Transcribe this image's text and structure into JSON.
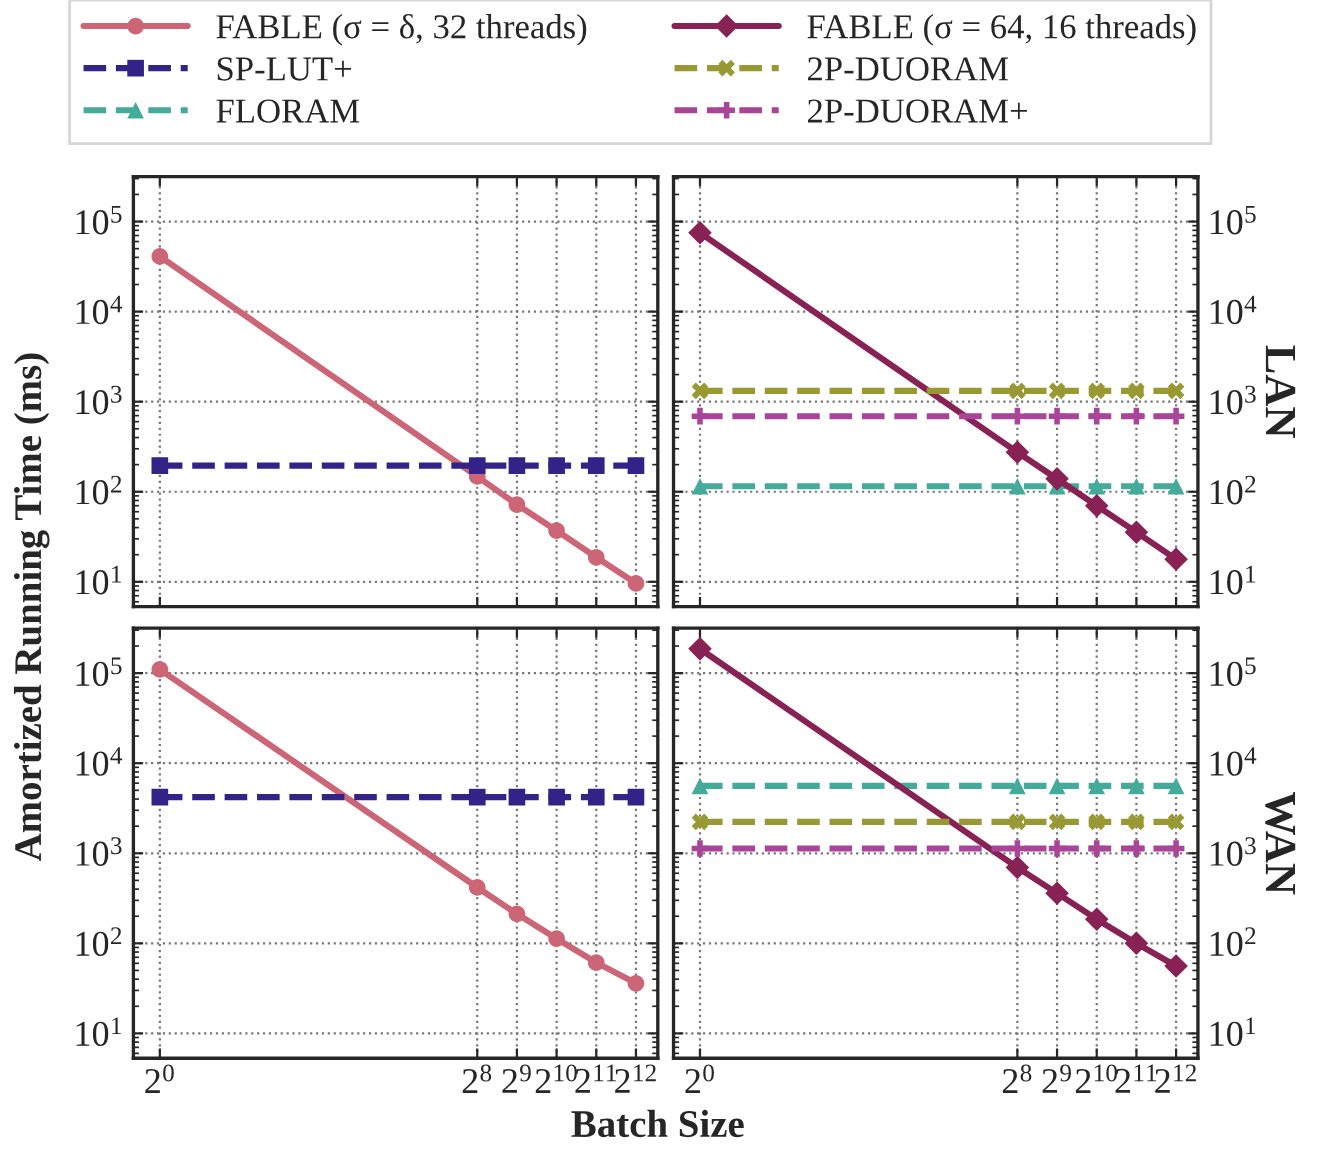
{
  "chart_data": [
    {
      "type": "line",
      "ylabel": "Amortized Running Time (ms)",
      "x": [
        1,
        256,
        512,
        1024,
        2048,
        4096
      ],
      "log": "xy",
      "grid": true,
      "legend": "top",
      "tick_labels": "y",
      "xlim": [
        0.63,
        6000
      ],
      "ylim": [
        5.3,
        316000
      ],
      "xticks": [
        {
          "value": 1,
          "label": null
        },
        {
          "value": 256,
          "label": null
        },
        {
          "value": 512,
          "label": null
        },
        {
          "value": 1024,
          "label": null
        },
        {
          "value": 2048,
          "label": null
        },
        {
          "value": 4096,
          "label": null
        }
      ],
      "yticks": [
        {
          "value": 10,
          "label": "10$^{1}$"
        },
        {
          "value": 100,
          "label": "10$^{2}$"
        },
        {
          "value": 1000,
          "label": "10$^{3}$"
        },
        {
          "value": 10000,
          "label": "10$^{4}$"
        },
        {
          "value": 100000,
          "label": "10$^{5}$"
        }
      ],
      "series": [
        {
          "name": "FABLE (σ = δ, 32 threads)",
          "color": "#cc6677",
          "marker": "circle",
          "line_style": "solid",
          "values": [
            41000,
            148,
            72,
            37,
            18.7,
            9.6
          ]
        },
        {
          "name": "SP-LUT+",
          "color": "#332288",
          "marker": "square",
          "line_style": "dashed",
          "values": [
            195,
            195,
            195,
            195,
            195,
            195
          ]
        }
      ]
    },
    {
      "type": "line",
      "ylabel": "LAN",
      "x": [
        1,
        256,
        512,
        1024,
        2048,
        4096
      ],
      "log": "xy",
      "grid": true,
      "legend": "top",
      "tick_labels": "y",
      "xlim": [
        0.63,
        6000
      ],
      "ylim": [
        5.3,
        316000
      ],
      "xticks": [
        {
          "value": 1,
          "label": null
        },
        {
          "value": 256,
          "label": null
        },
        {
          "value": 512,
          "label": null
        },
        {
          "value": 1024,
          "label": null
        },
        {
          "value": 2048,
          "label": null
        },
        {
          "value": 4096,
          "label": null
        }
      ],
      "yticks": [
        {
          "value": 10,
          "label": "10$^{1}$"
        },
        {
          "value": 100,
          "label": "10$^{2}$"
        },
        {
          "value": 1000,
          "label": "10$^{3}$"
        },
        {
          "value": 10000,
          "label": "10$^{4}$"
        },
        {
          "value": 100000,
          "label": "10$^{5}$"
        }
      ],
      "series": [
        {
          "name": "FLORAM",
          "color": "#44aa99",
          "marker": "triangle",
          "line_style": "dashed",
          "values": [
            115,
            115,
            115,
            115,
            115,
            115
          ]
        },
        {
          "name": "FABLE (σ = 64, 16 threads)",
          "color": "#882255",
          "marker": "diamond",
          "line_style": "solid",
          "values": [
            75000,
            275,
            139,
            70,
            35.5,
            17.8
          ]
        },
        {
          "name": "2P-DUORAM",
          "color": "#999933",
          "marker": "cross",
          "line_style": "dashed",
          "values": [
            1320,
            1320,
            1320,
            1320,
            1320,
            1320
          ]
        },
        {
          "name": "2P-DUORAM+",
          "color": "#aa4499",
          "marker": "plus",
          "line_style": "dashed",
          "values": [
            690,
            690,
            690,
            690,
            690,
            690
          ]
        }
      ]
    },
    {
      "type": "line",
      "xlabel": "Batch Size",
      "x": [
        1,
        256,
        512,
        1024,
        2048,
        4096
      ],
      "log": "xy",
      "grid": true,
      "xlim": [
        0.63,
        6000
      ],
      "ylim": [
        5.3,
        316000
      ],
      "xticks": [
        {
          "value": 1,
          "label": "2$^{0}$"
        },
        {
          "value": 256,
          "label": "2$^{8}$"
        },
        {
          "value": 512,
          "label": "2$^{9}$"
        },
        {
          "value": 1024,
          "label": "2$^{10}$"
        },
        {
          "value": 2048,
          "label": "2$^{11}$"
        },
        {
          "value": 4096,
          "label": "2$^{12}$"
        }
      ],
      "yticks": [
        {
          "value": 10,
          "label": "10$^{1}$"
        },
        {
          "value": 100,
          "label": "10$^{2}$"
        },
        {
          "value": 1000,
          "label": "10$^{3}$"
        },
        {
          "value": 10000,
          "label": "10$^{4}$"
        },
        {
          "value": 100000,
          "label": "10$^{5}$"
        }
      ],
      "series": [
        {
          "name": "FABLE (σ = δ, 32 threads)",
          "color": "#cc6677",
          "marker": "circle",
          "line_style": "solid",
          "values": [
            110000,
            418,
            212,
            113,
            61,
            36
          ]
        },
        {
          "name": "SP-LUT+",
          "color": "#332288",
          "marker": "square",
          "line_style": "dashed",
          "values": [
            4200,
            4200,
            4200,
            4200,
            4200,
            4200
          ]
        }
      ]
    },
    {
      "type": "line",
      "ylabel": "WAN",
      "x": [
        1,
        256,
        512,
        1024,
        2048,
        4096
      ],
      "log": "xy",
      "grid": true,
      "xlim": [
        0.63,
        6000
      ],
      "ylim": [
        5.3,
        316000
      ],
      "xticks": [
        {
          "value": 1,
          "label": "2$^{0}$"
        },
        {
          "value": 256,
          "label": "2$^{8}$"
        },
        {
          "value": 512,
          "label": "2$^{9}$"
        },
        {
          "value": 1024,
          "label": "2$^{10}$"
        },
        {
          "value": 2048,
          "label": "2$^{11}$"
        },
        {
          "value": 4096,
          "label": "2$^{12}$"
        }
      ],
      "yticks": [
        {
          "value": 10,
          "label": "10$^{1}$"
        },
        {
          "value": 100,
          "label": "10$^{2}$"
        },
        {
          "value": 1000,
          "label": "10$^{3}$"
        },
        {
          "value": 10000,
          "label": "10$^{4}$"
        },
        {
          "value": 100000,
          "label": "10$^{5}$"
        }
      ],
      "series": [
        {
          "name": "FLORAM",
          "color": "#44aa99",
          "marker": "triangle",
          "line_style": "dashed",
          "values": [
            5600,
            5600,
            5600,
            5600,
            5600,
            5600
          ]
        },
        {
          "name": "FABLE (σ = 64, 16 threads)",
          "color": "#882255",
          "marker": "diamond",
          "line_style": "solid",
          "values": [
            186000,
            695,
            360,
            185,
            100,
            56
          ]
        },
        {
          "name": "2P-DUORAM",
          "color": "#999933",
          "marker": "cross",
          "line_style": "dashed",
          "values": [
            2230,
            2230,
            2230,
            2230,
            2230,
            2230
          ]
        },
        {
          "name": "2P-DUORAM+",
          "color": "#aa4499",
          "marker": "plus",
          "line_style": "dashed",
          "values": [
            1130,
            1130,
            1130,
            1130,
            1130,
            1130
          ]
        }
      ]
    }
  ]
}
